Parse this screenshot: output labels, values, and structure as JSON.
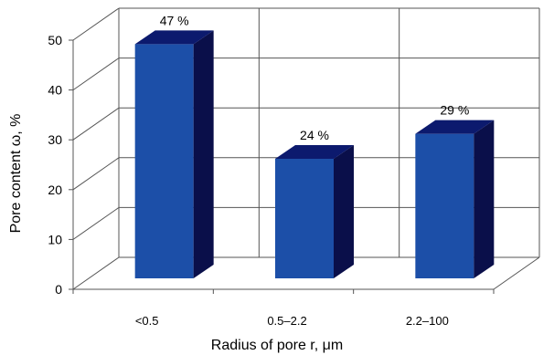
{
  "chart_data": {
    "type": "bar",
    "categories": [
      "<0.5",
      "0.5–2.2",
      "2.2–100"
    ],
    "values": [
      47,
      24,
      29
    ],
    "data_labels": [
      "47 %",
      "24 %",
      "29 %"
    ],
    "xlabel": "Radius of pore r,   μm",
    "ylabel": "Pore content ω, %",
    "ylim": [
      0,
      50
    ],
    "yticks": [
      "0",
      "10",
      "20",
      "30",
      "40",
      "50"
    ],
    "grid": true,
    "three_d": true,
    "colors": {
      "bar_front": "#1c4fa8",
      "bar_side": "#0a0f4a",
      "bar_top": "#0c1a6e",
      "grid": "#555555"
    }
  }
}
